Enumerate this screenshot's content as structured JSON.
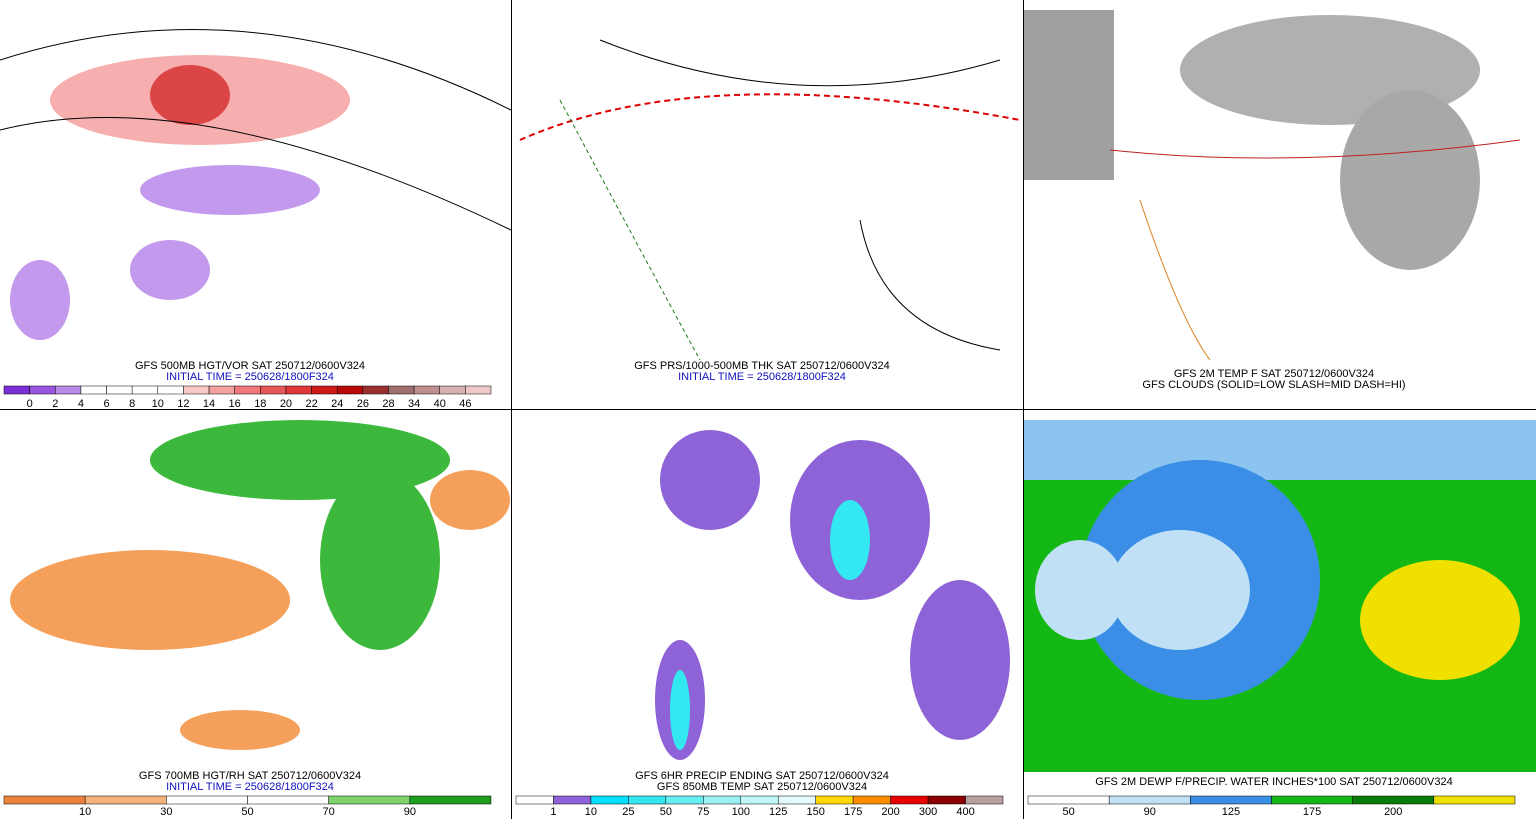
{
  "panels": [
    {
      "captions": [
        {
          "text": "GFS 500MB HGT/VOR SAT 250712/0600V324",
          "color": "#000000"
        },
        {
          "text": "INITIAL TIME = 250628/1800F324",
          "color": "#1010c0"
        }
      ],
      "colorbar": {
        "label_position": "edge",
        "colors": [
          "#7b2fd6",
          "#9a55e0",
          "#b98ae8",
          "#ffffff",
          "#ffffff",
          "#ffffff",
          "#ffffff",
          "#f9c8c8",
          "#f5a0a0",
          "#f07878",
          "#e85858",
          "#e03838",
          "#d01818",
          "#b80808",
          "#9a3030",
          "#a07070",
          "#c09090",
          "#d8b0b0",
          "#f0c8c8"
        ],
        "labels": [
          "0",
          "2",
          "4",
          "6",
          "8",
          "10",
          "12",
          "14",
          "16",
          "18",
          "20",
          "22",
          "24",
          "26",
          "28",
          "34",
          "40",
          "46"
        ]
      }
    },
    {
      "captions": [
        {
          "text": "GFS PRS/1000-500MB THK SAT 250712/0600V324",
          "color": "#000000"
        },
        {
          "text": "INITIAL TIME = 250628/1800F324",
          "color": "#1010c0"
        }
      ]
    },
    {
      "captions": [
        {
          "text": "GFS 2M TEMP F SAT 250712/0600V324",
          "color": "#000000"
        },
        {
          "text": "GFS CLOUDS (SOLID=LOW SLASH=MID DASH=HI)",
          "color": "#000000"
        }
      ]
    },
    {
      "captions": [
        {
          "text": "GFS 700MB HGT/RH SAT 250712/0600V324",
          "color": "#000000"
        },
        {
          "text": "INITIAL TIME = 250628/1800F324",
          "color": "#1010c0"
        }
      ],
      "colorbar": {
        "label_position": "edge",
        "colors": [
          "#e8823c",
          "#f5b27a",
          "#ffffff",
          "#ffffff",
          "#7fd36b",
          "#1e9e1e"
        ],
        "labels": [
          "10",
          "30",
          "50",
          "70",
          "90"
        ]
      }
    },
    {
      "captions": [
        {
          "text": "GFS 6HR PRECIP ENDING SAT 250712/0600V324",
          "color": "#000000"
        },
        {
          "text": "GFS 850MB TEMP SAT 250712/0600V324",
          "color": "#000000"
        }
      ],
      "colorbar": {
        "label_position": "edge",
        "colors": [
          "#ffffff",
          "#8e63d8",
          "#00e0ff",
          "#33e8f0",
          "#66eef2",
          "#99f3f4",
          "#bff7f6",
          "#e0fbfa",
          "#ffd700",
          "#ff8c00",
          "#e60000",
          "#8b0000",
          "#b8a0a0"
        ],
        "labels": [
          "1",
          "10",
          "25",
          "50",
          "75",
          "100",
          "125",
          "150",
          "175",
          "200",
          "300",
          "400"
        ]
      }
    },
    {
      "captions": [
        {
          "text": "GFS 2M DEWP F/PRECIP. WATER INCHES*100 SAT 250712/0600V324",
          "color": "#000000"
        }
      ],
      "colorbar": {
        "label_position": "center",
        "colors": [
          "#ffffff",
          "#bfe0f5",
          "#3a8ee6",
          "#14b814",
          "#0a7a0a",
          "#f0e000"
        ],
        "labels": [
          "50",
          "90",
          "125",
          "175",
          "200"
        ]
      }
    }
  ]
}
